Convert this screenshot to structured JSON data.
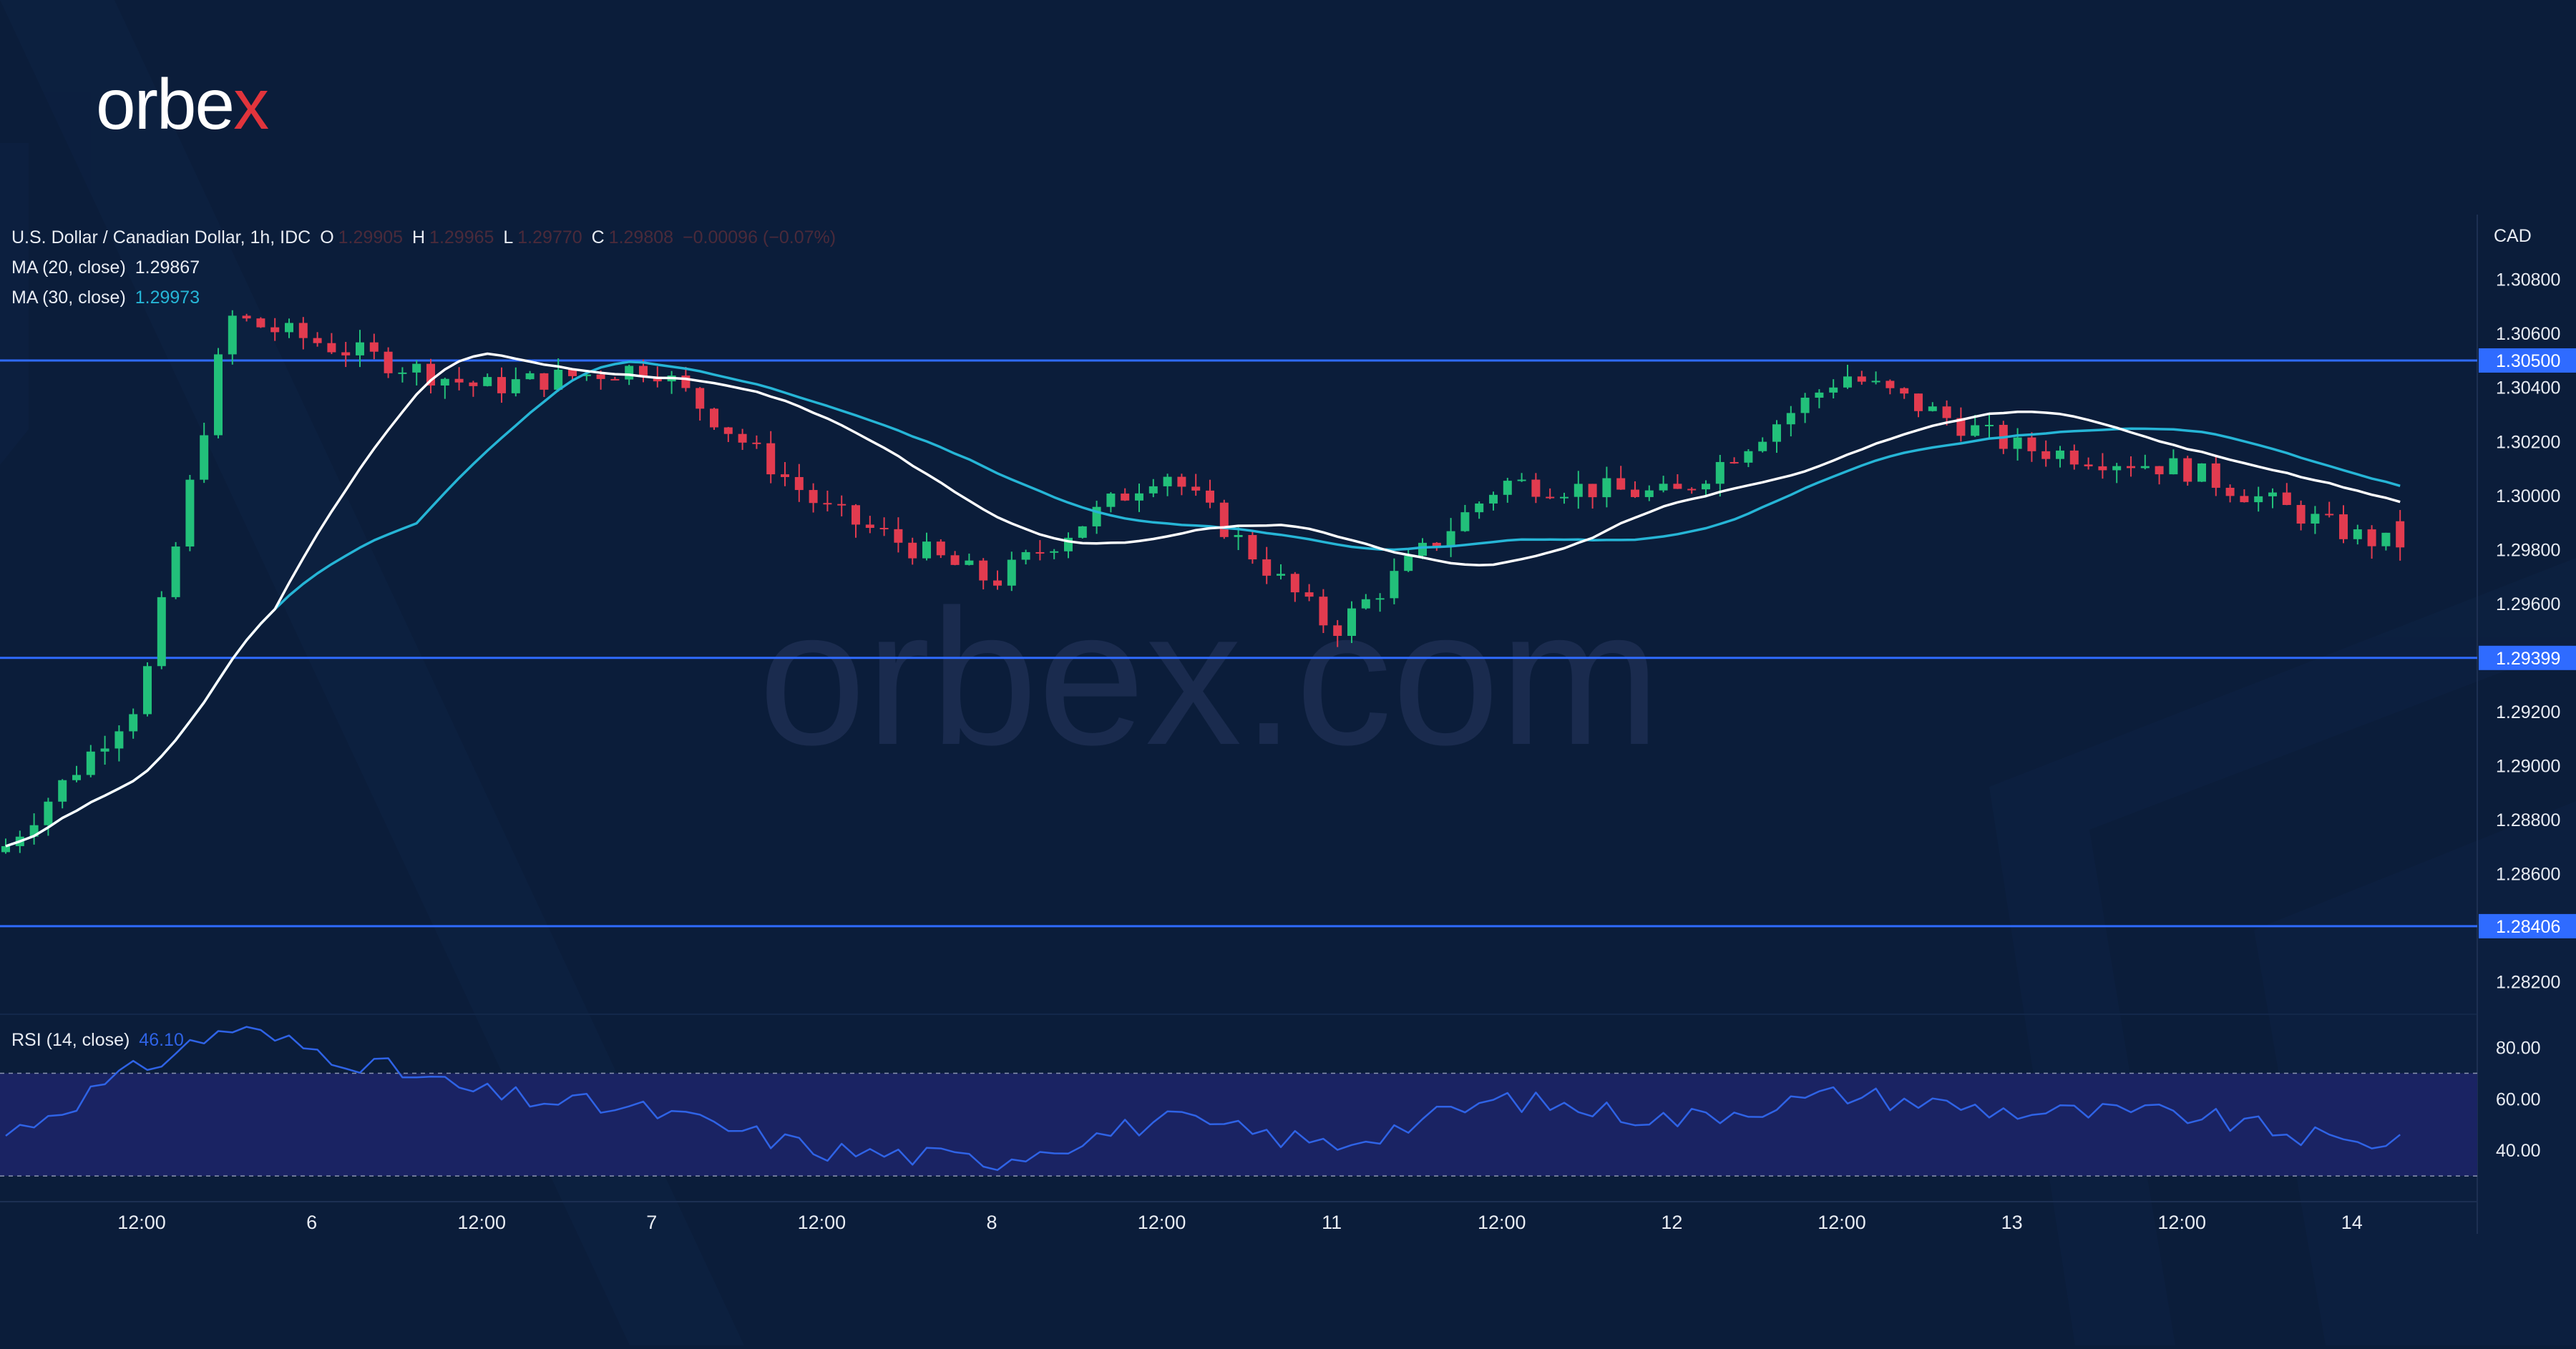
{
  "brand": {
    "logo_text": "orbex",
    "logo_x": "x",
    "watermark": "orbex.com"
  },
  "legend": {
    "symbol": "U.S. Dollar / Canadian Dollar, 1h, IDC",
    "o_label": "O",
    "o_value": "1.29905",
    "h_label": "H",
    "h_value": "1.29965",
    "l_label": "L",
    "l_value": "1.29770",
    "c_label": "C",
    "c_value": "1.29808",
    "change": "−0.00096 (−0.07%)",
    "ma20_label": "MA (20, close)",
    "ma20_value": "1.29867",
    "ma30_label": "MA (30, close)",
    "ma30_value": "1.29973",
    "rsi_label": "RSI (14, close)",
    "rsi_value": "46.10"
  },
  "colors": {
    "background": "#0b1d3a",
    "bull": "#22c07a",
    "bear": "#e23b4f",
    "ma20": "#ffffff",
    "ma30": "#26b5d6",
    "level_line": "#2f6bff",
    "rsi_line": "#2f63e6",
    "rsi_band": "#1a2363"
  },
  "chart_data": [
    {
      "type": "candlestick",
      "title": "U.S. Dollar / Canadian Dollar, 1h, IDC",
      "currency_label": "CAD",
      "x_tick_labels": [
        "12:00",
        "6",
        "12:00",
        "7",
        "12:00",
        "8",
        "12:00",
        "11",
        "12:00",
        "12",
        "12:00",
        "13",
        "12:00",
        "14"
      ],
      "y_tick_labels": [
        "1.30800",
        "1.30600",
        "1.30400",
        "1.30200",
        "1.30000",
        "1.29800",
        "1.29600",
        "1.29200",
        "1.29000",
        "1.28800",
        "1.28600",
        "1.28200"
      ],
      "ylim": [
        1.2808,
        1.3104
      ],
      "horizontal_levels": [
        {
          "value": 1.305,
          "label": "1.30500"
        },
        {
          "value": 1.29399,
          "label": "1.29399"
        },
        {
          "value": 1.28406,
          "label": "1.28406"
        }
      ],
      "price_anchors": [
        {
          "day": "5",
          "time": "start",
          "close": 1.2868
        },
        {
          "day": "5",
          "time": "12:00",
          "close": 1.2925
        },
        {
          "day": "5",
          "time": "peak",
          "close": 1.3066
        },
        {
          "day": "6",
          "time": "12:00",
          "close": 1.304
        },
        {
          "day": "7",
          "time": "start",
          "close": 1.3048
        },
        {
          "day": "7",
          "time": "12:00",
          "close": 1.2995
        },
        {
          "day": "8",
          "time": "start",
          "close": 1.2968
        },
        {
          "day": "8",
          "time": "12:00",
          "close": 1.301
        },
        {
          "day": "11",
          "time": "start",
          "close": 1.295
        },
        {
          "day": "11",
          "time": "12:00",
          "close": 1.3005
        },
        {
          "day": "12",
          "time": "start",
          "close": 1.3
        },
        {
          "day": "12",
          "time": "12:00",
          "close": 1.3045
        },
        {
          "day": "13",
          "time": "start",
          "close": 1.3018
        },
        {
          "day": "13",
          "time": "12:00",
          "close": 1.301
        },
        {
          "day": "14",
          "time": "start",
          "close": 1.2985
        },
        {
          "day": "14",
          "time": "last",
          "close": 1.29808
        }
      ],
      "series": [
        {
          "name": "MA (20, close)",
          "last": 1.29867
        },
        {
          "name": "MA (30, close)",
          "last": 1.29973
        }
      ]
    },
    {
      "type": "line",
      "title": "RSI (14, close)",
      "y_tick_labels": [
        "80.00",
        "60.00",
        "40.00"
      ],
      "ylim": [
        20,
        93
      ],
      "band": [
        30,
        70
      ],
      "anchors": [
        {
          "day": "5",
          "time": "start",
          "value": 45
        },
        {
          "day": "5",
          "time": "12:00",
          "value": 72
        },
        {
          "day": "5",
          "time": "peak",
          "value": 88
        },
        {
          "day": "6",
          "time": "12:00",
          "value": 62
        },
        {
          "day": "7",
          "time": "start",
          "value": 55
        },
        {
          "day": "7",
          "time": "12:00",
          "value": 40
        },
        {
          "day": "8",
          "time": "start",
          "value": 36
        },
        {
          "day": "8",
          "time": "12:00",
          "value": 52
        },
        {
          "day": "11",
          "time": "start",
          "value": 42
        },
        {
          "day": "11",
          "time": "12:00",
          "value": 60
        },
        {
          "day": "12",
          "time": "start",
          "value": 52
        },
        {
          "day": "12",
          "time": "12:00",
          "value": 62
        },
        {
          "day": "13",
          "time": "start",
          "value": 55
        },
        {
          "day": "13",
          "time": "12:00",
          "value": 54
        },
        {
          "day": "14",
          "time": "start",
          "value": 42
        },
        {
          "day": "14",
          "time": "last",
          "value": 46.1
        }
      ],
      "last_value": 46.1
    }
  ]
}
